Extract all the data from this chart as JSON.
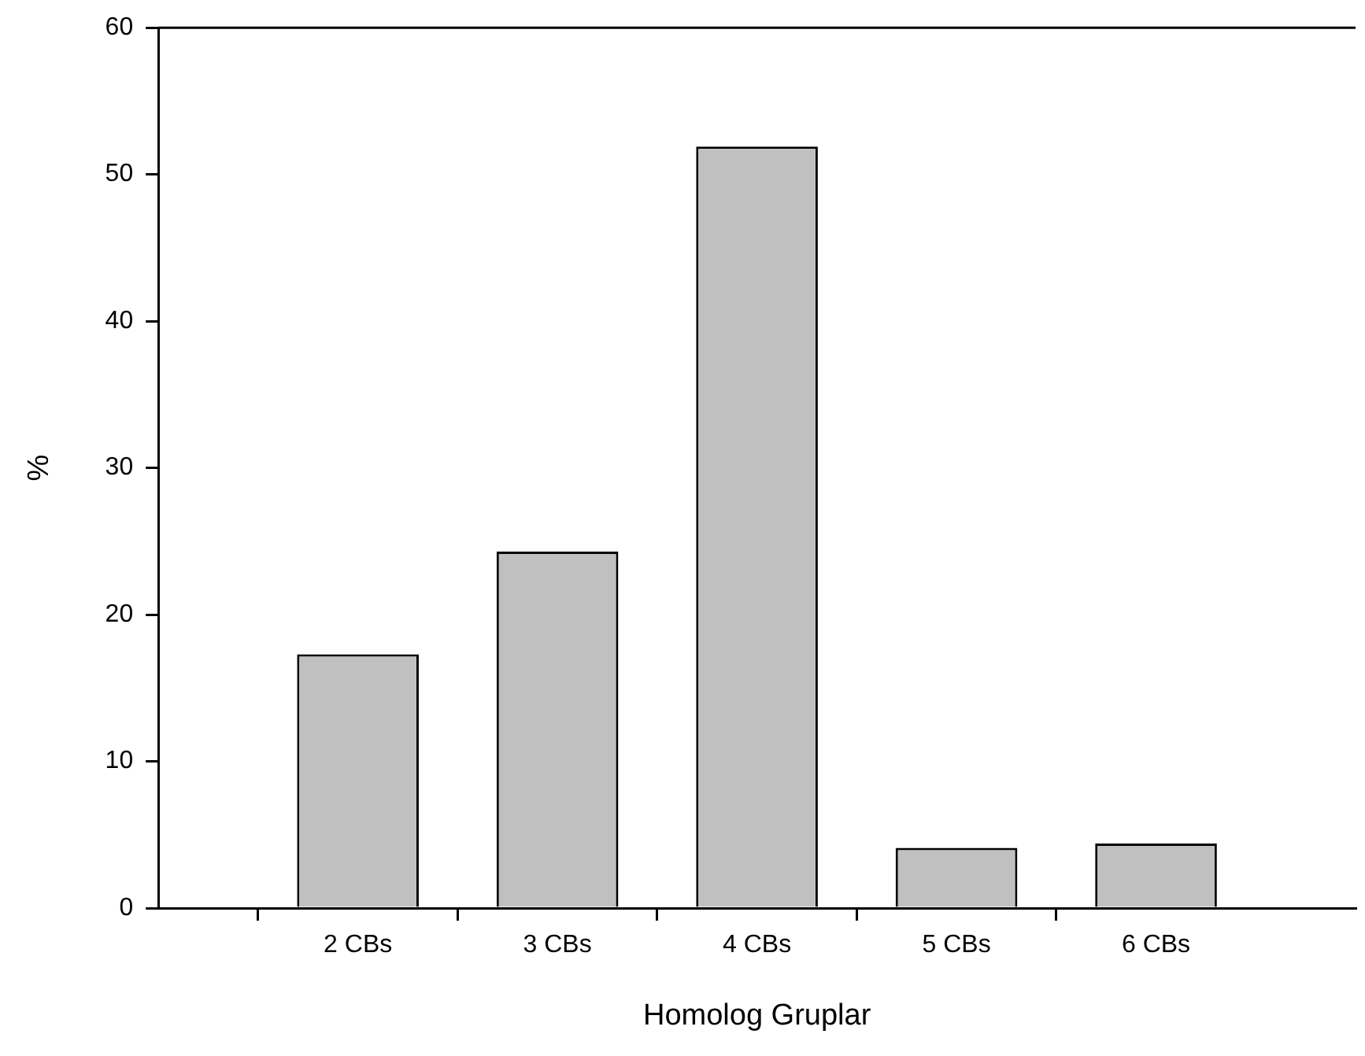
{
  "chart_data": {
    "type": "bar",
    "xlabel": "Homolog Gruplar",
    "ylabel": "%",
    "categories": [
      null,
      "2 CBs",
      "3 CBs",
      "4 CBs",
      "5 CBs",
      "6 CBs",
      null
    ],
    "values": [
      null,
      17.3,
      24.3,
      51.9,
      4.1,
      4.4,
      null
    ],
    "color": "#c0c0c0",
    "ylim": [
      0,
      60
    ],
    "yticks": [
      0,
      10,
      20,
      30,
      40,
      50,
      60
    ],
    "grid": false,
    "legend": false
  }
}
